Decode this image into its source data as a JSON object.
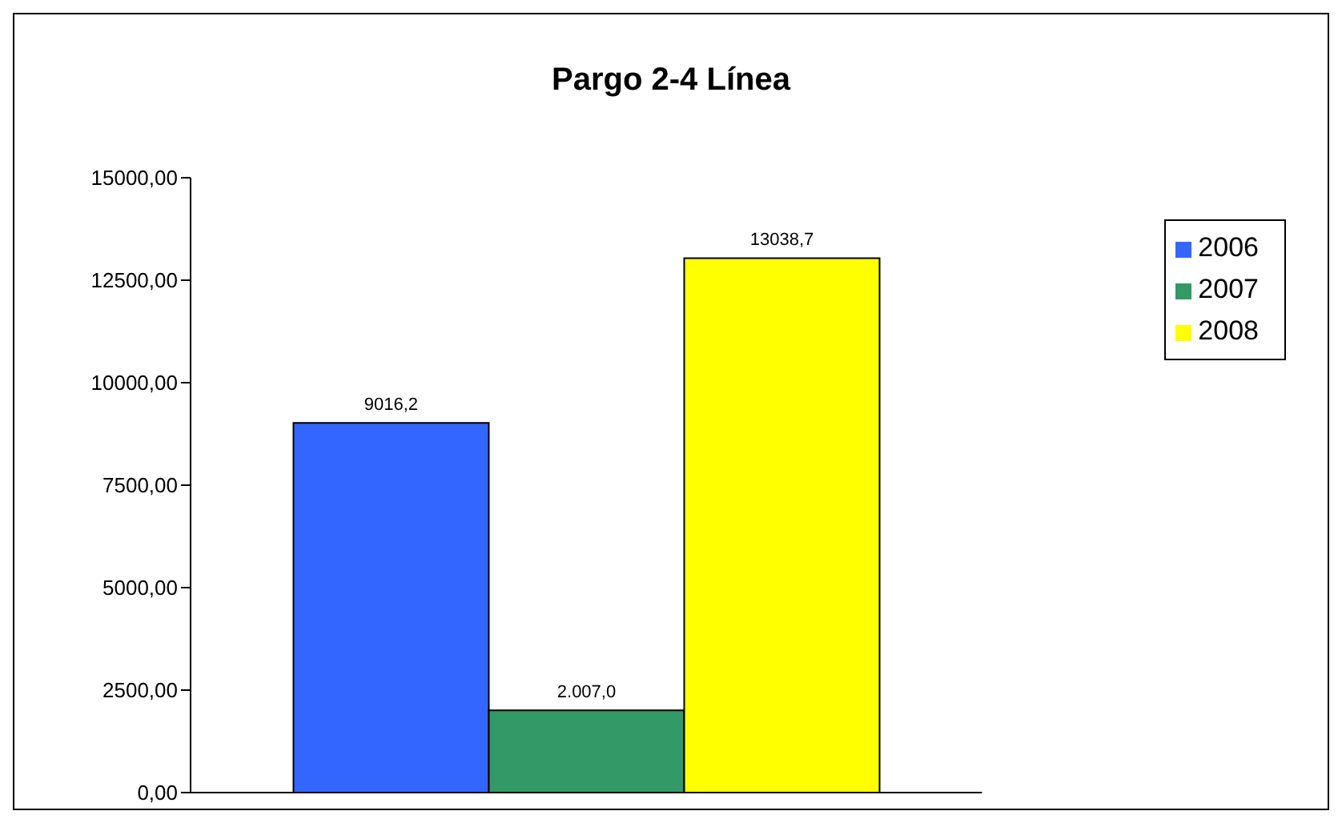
{
  "chart_data": {
    "type": "bar",
    "title": "Pargo 2-4 Línea",
    "categories": [
      null
    ],
    "series": [
      {
        "name": "2006",
        "color": "#3366ff",
        "values": [
          9016.2
        ],
        "value_labels": [
          "9016,2"
        ]
      },
      {
        "name": "2007",
        "color": "#339966",
        "values": [
          2007.0
        ],
        "value_labels": [
          "2.007,0"
        ]
      },
      {
        "name": "2008",
        "color": "#ffff00",
        "values": [
          13038.7
        ],
        "value_labels": [
          "13038,7"
        ]
      }
    ],
    "ylim": [
      0,
      15000
    ],
    "yticks": [
      {
        "value": 0,
        "label": "0,00"
      },
      {
        "value": 2500,
        "label": "2500,00"
      },
      {
        "value": 5000,
        "label": "5000,00"
      },
      {
        "value": 7500,
        "label": "7500,00"
      },
      {
        "value": 10000,
        "label": "10000,00"
      },
      {
        "value": 12500,
        "label": "12500,00"
      },
      {
        "value": 15000,
        "label": "15000,00"
      }
    ],
    "grid": false,
    "legend": "right"
  }
}
